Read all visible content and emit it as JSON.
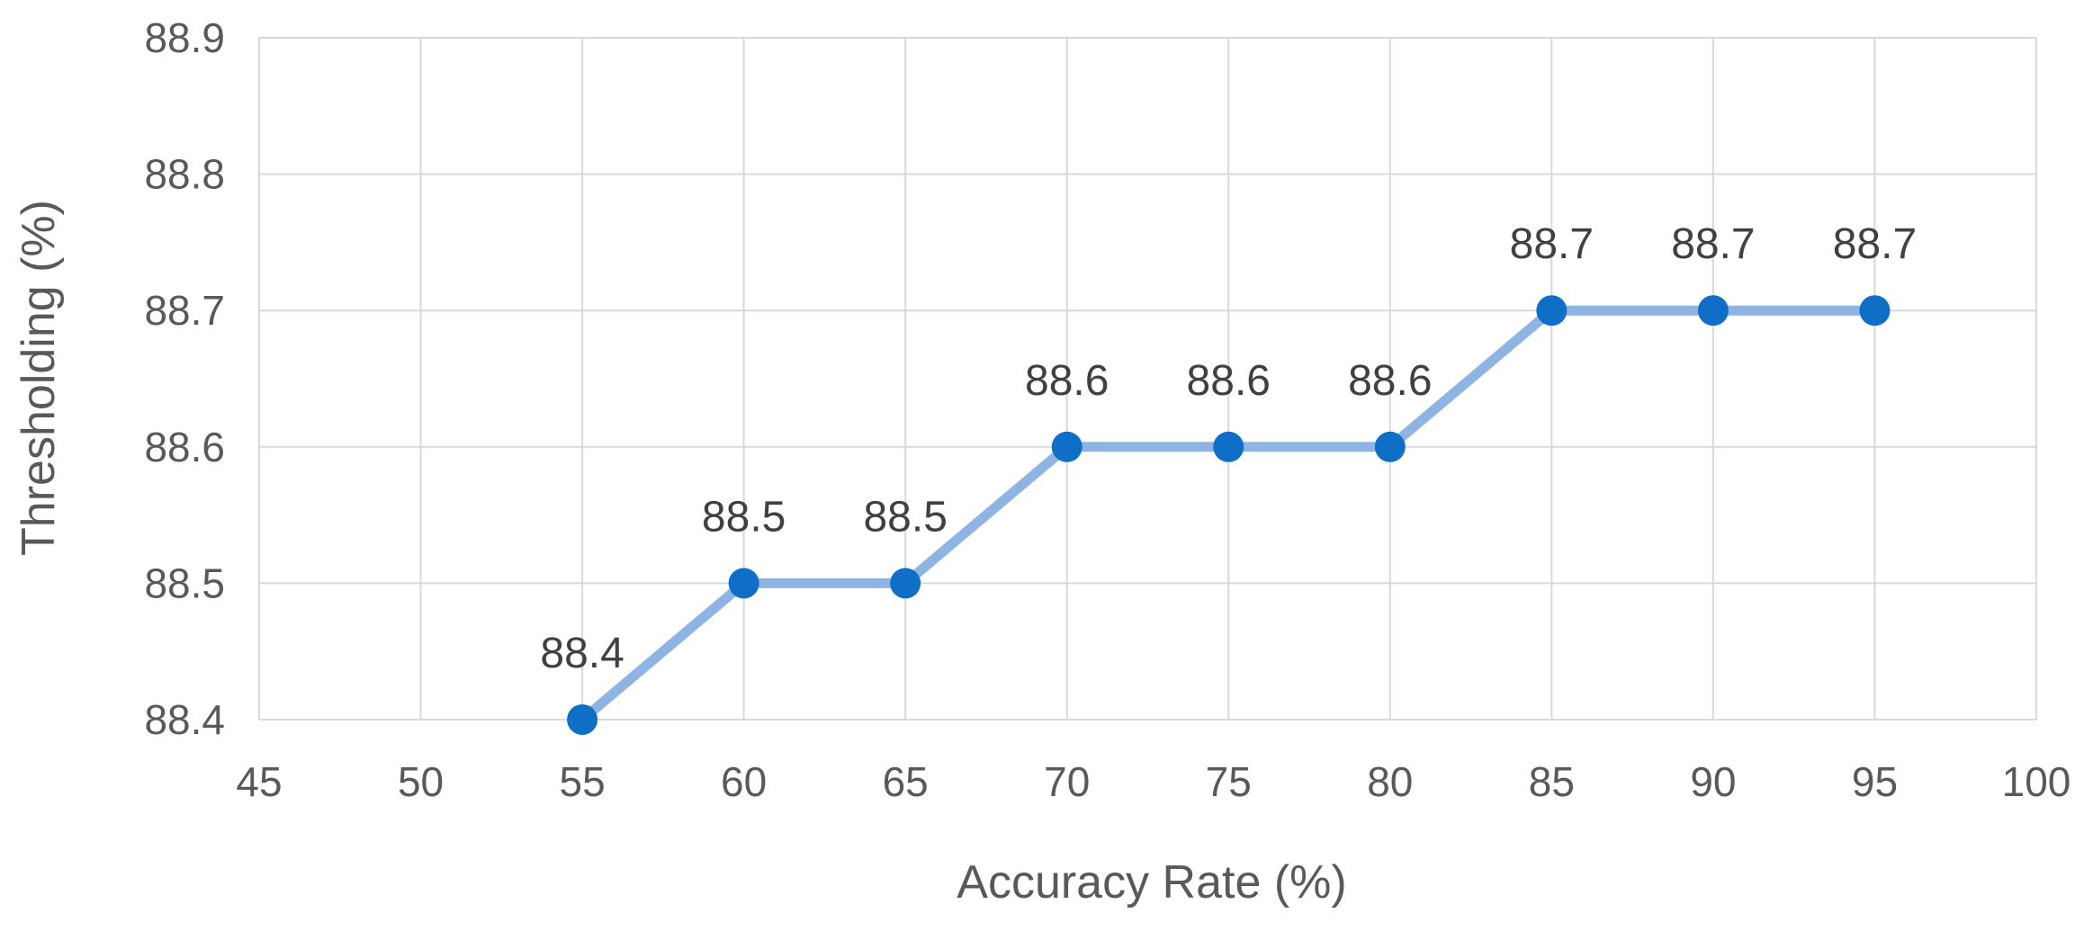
{
  "chart_data": {
    "type": "line",
    "title": "",
    "xlabel": "Accuracy Rate (%)",
    "ylabel": "Thresholding (%)",
    "xlim": [
      45,
      100
    ],
    "ylim": [
      88.4,
      88.9
    ],
    "x_ticks": [
      "45",
      "50",
      "55",
      "60",
      "65",
      "70",
      "75",
      "80",
      "85",
      "90",
      "95",
      "100"
    ],
    "y_ticks": [
      "88.4",
      "88.5",
      "88.6",
      "88.7",
      "88.8",
      "88.9"
    ],
    "grid": true,
    "legend": "none",
    "series": [
      {
        "x": [
          55,
          60,
          65,
          70,
          75,
          80,
          85,
          90,
          95
        ],
        "y": [
          88.4,
          88.5,
          88.5,
          88.6,
          88.6,
          88.6,
          88.7,
          88.7,
          88.7
        ],
        "labels": [
          "88.4",
          "88.5",
          "88.5",
          "88.6",
          "88.6",
          "88.6",
          "88.7",
          "88.7",
          "88.7"
        ],
        "line_color": "#8EB4E3",
        "marker_color": "#0F6FC6"
      }
    ]
  }
}
